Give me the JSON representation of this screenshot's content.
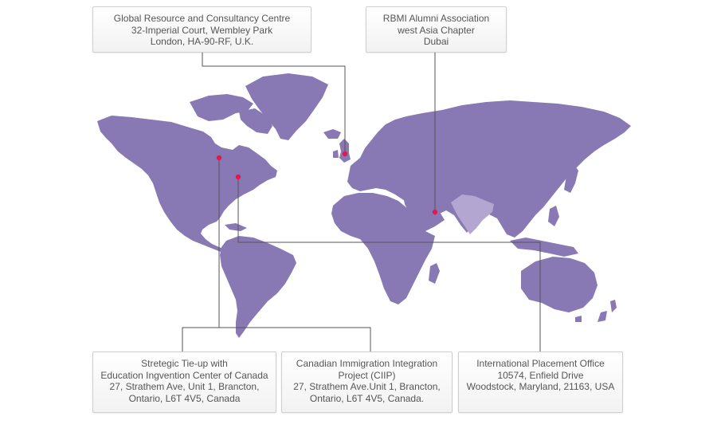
{
  "colors": {
    "land": "#8878b3",
    "india_highlight": "#b3a7d2",
    "marker": "#e0194f",
    "connector": "#555555",
    "box_text": "#555555",
    "box_border": "#cfcfcf"
  },
  "offices": {
    "london": {
      "line1": "Global Resource and Consultancy Centre",
      "line2": "32-Imperial Court, Wembley Park",
      "line3": "London, HA-90-RF, U.K."
    },
    "dubai": {
      "line1": "RBMI Alumni Association",
      "line2": "west Asia Chapter",
      "line3": "Dubai"
    },
    "canada_tieup": {
      "line1": "Stretegic Tie-up with",
      "line2": "Education Ingvention Center of Canada",
      "line3": "27, Strathem Ave, Unit 1, Brancton,",
      "line4": "Ontario, L6T 4V5, Canada"
    },
    "ciip": {
      "line1": "Canadian Immigration Integration",
      "line2": "Project (CIIP)",
      "line3": "27, Strathem Ave.Unit 1, Brancton,",
      "line4": "Ontario, L6T 4V5, Canada."
    },
    "usa": {
      "line1": "International Placement Office",
      "line2": "10574, Enfield Drive",
      "line3": "Woodstock, Maryland, 21163, USA"
    }
  },
  "map": {
    "marker_icon": "location-dot",
    "highlighted_country": "India"
  }
}
